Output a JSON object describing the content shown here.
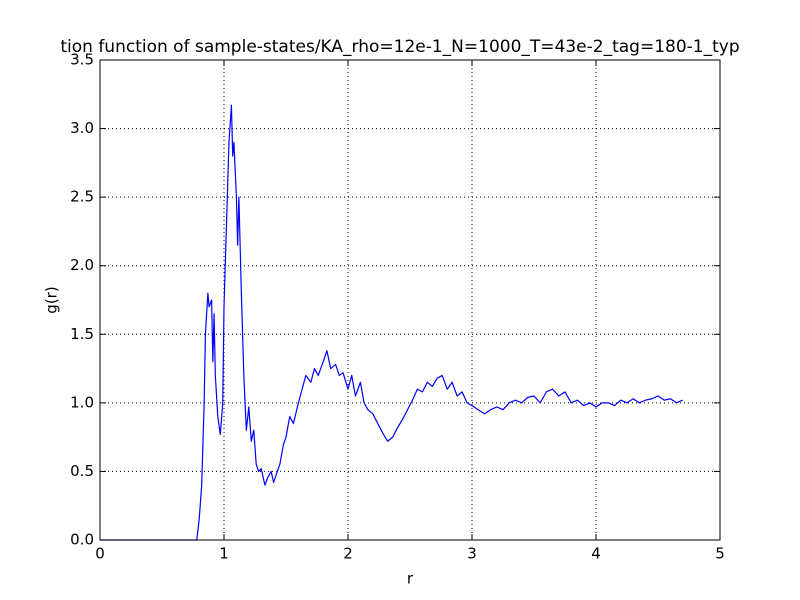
{
  "chart_data": {
    "type": "line",
    "title": "tion function of sample-states/KA_rho=12e-1_N=1000_T=43e-2_tag=180-1_typ",
    "x_label": "r",
    "y_label": "g(r)",
    "x": [
      0,
      0.2,
      0.4,
      0.6,
      0.78,
      0.8,
      0.82,
      0.84,
      0.85,
      0.87,
      0.88,
      0.9,
      0.91,
      0.92,
      0.93,
      0.95,
      0.97,
      0.99,
      1.0,
      1.02,
      1.04,
      1.06,
      1.07,
      1.08,
      1.1,
      1.11,
      1.12,
      1.14,
      1.16,
      1.18,
      1.2,
      1.22,
      1.24,
      1.26,
      1.28,
      1.3,
      1.33,
      1.35,
      1.38,
      1.4,
      1.43,
      1.45,
      1.48,
      1.5,
      1.53,
      1.56,
      1.6,
      1.63,
      1.66,
      1.7,
      1.73,
      1.76,
      1.8,
      1.83,
      1.86,
      1.9,
      1.93,
      1.96,
      2.0,
      2.03,
      2.06,
      2.1,
      2.13,
      2.16,
      2.2,
      2.24,
      2.28,
      2.32,
      2.36,
      2.4,
      2.44,
      2.48,
      2.52,
      2.56,
      2.6,
      2.64,
      2.68,
      2.72,
      2.76,
      2.8,
      2.84,
      2.88,
      2.92,
      2.96,
      3.0,
      3.05,
      3.1,
      3.15,
      3.2,
      3.25,
      3.3,
      3.35,
      3.4,
      3.45,
      3.5,
      3.55,
      3.6,
      3.65,
      3.7,
      3.75,
      3.8,
      3.85,
      3.9,
      3.95,
      4.0,
      4.05,
      4.1,
      4.15,
      4.2,
      4.25,
      4.3,
      4.35,
      4.4,
      4.45,
      4.5,
      4.55,
      4.6,
      4.65,
      4.7
    ],
    "series": [
      {
        "color": "#0000ff",
        "values": [
          0,
          0,
          0,
          0,
          0,
          0.15,
          0.4,
          1.0,
          1.5,
          1.8,
          1.7,
          1.75,
          1.3,
          1.65,
          1.2,
          0.9,
          0.77,
          1.0,
          1.7,
          2.3,
          2.9,
          3.17,
          2.8,
          2.9,
          2.5,
          2.15,
          2.5,
          1.8,
          1.2,
          0.8,
          0.97,
          0.72,
          0.8,
          0.55,
          0.5,
          0.52,
          0.4,
          0.45,
          0.5,
          0.42,
          0.5,
          0.55,
          0.7,
          0.75,
          0.9,
          0.85,
          1.0,
          1.1,
          1.2,
          1.15,
          1.25,
          1.2,
          1.3,
          1.38,
          1.25,
          1.28,
          1.2,
          1.22,
          1.1,
          1.2,
          1.05,
          1.15,
          1.0,
          0.95,
          0.92,
          0.85,
          0.78,
          0.72,
          0.75,
          0.82,
          0.88,
          0.95,
          1.02,
          1.1,
          1.08,
          1.15,
          1.12,
          1.18,
          1.2,
          1.1,
          1.15,
          1.05,
          1.08,
          1.0,
          0.98,
          0.95,
          0.92,
          0.95,
          0.97,
          0.95,
          1.0,
          1.02,
          1.0,
          1.04,
          1.05,
          1.0,
          1.08,
          1.1,
          1.05,
          1.08,
          1.0,
          1.02,
          0.98,
          1.0,
          0.97,
          1.0,
          1.0,
          0.98,
          1.02,
          1.0,
          1.03,
          1.0,
          1.02,
          1.03,
          1.05,
          1.02,
          1.03,
          1.0,
          1.02
        ]
      }
    ],
    "xlim": [
      0,
      5
    ],
    "xticks": [
      0,
      1,
      2,
      3,
      4,
      5
    ],
    "ylim": [
      0,
      3.5
    ],
    "yticks": [
      {
        "value": 0,
        "label": "0.0"
      },
      {
        "value": 0.5,
        "label": "0.5"
      },
      {
        "value": 1,
        "label": "1.0"
      },
      {
        "value": 1.5,
        "label": "1.5"
      },
      {
        "value": 2,
        "label": "2.0"
      },
      {
        "value": 2.5,
        "label": "2.5"
      },
      {
        "value": 3,
        "label": "3.0"
      },
      {
        "value": 3.5,
        "label": "3.5"
      }
    ],
    "grid": true
  }
}
